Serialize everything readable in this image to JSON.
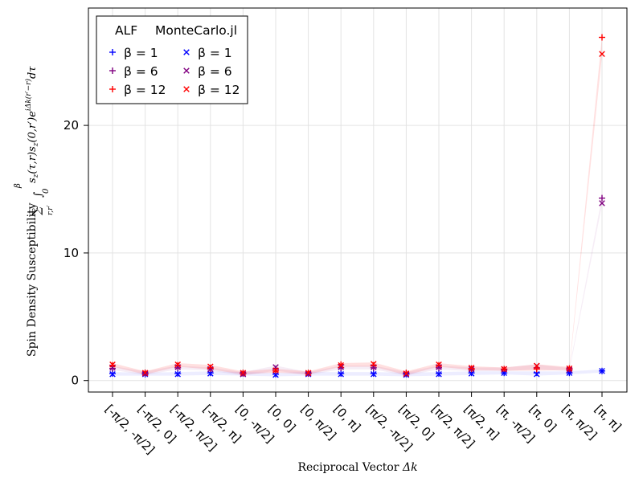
{
  "chart_data": {
    "type": "scatter",
    "xlabel_text": "Reciprocal Vector ",
    "xlabel_symbol": "Δk",
    "ylabel_text": "Spin Density Susceptibility ",
    "ylabel_sum": "∑",
    "ylabel_sum_sub": "r,r′",
    "ylabel_integral": "∫",
    "ylabel_int_upper": "β",
    "ylabel_int_lower": "0",
    "ylabel_integrand": "s",
    "ylabel_integrand_a": "z",
    "ylabel_integrand_b": "(τ,r)s",
    "ylabel_integrand_c": "z",
    "ylabel_integrand_d": "(0,r′)e",
    "ylabel_integrand_exp": "iΔk(r′−r)",
    "ylabel_integrand_end": "dτ",
    "categories": [
      "[-π/2, -π/2]",
      "[-π/2, 0]",
      "[-π/2, π/2]",
      "[-π/2, π]",
      "[0, -π/2]",
      "[0, 0]",
      "[0, π/2]",
      "[0, π]",
      "[π/2, -π/2]",
      "[π/2, 0]",
      "[π/2, π/2]",
      "[π/2, π]",
      "[π, -π/2]",
      "[π, 0]",
      "[π, π/2]",
      "[π, π]"
    ],
    "yticks": [
      0,
      10,
      20
    ],
    "ylim": [
      -0.9,
      29.2
    ],
    "legend": {
      "position": "top-left",
      "group_titles": [
        "ALF",
        "MonteCarlo.jl"
      ]
    },
    "series": [
      {
        "name": "β = 1",
        "group": "ALF",
        "marker": "+",
        "color": "#0000ff",
        "values": [
          0.55,
          0.5,
          0.55,
          0.6,
          0.55,
          0.5,
          0.55,
          0.55,
          0.55,
          0.5,
          0.55,
          0.6,
          0.6,
          0.6,
          0.6,
          0.75
        ]
      },
      {
        "name": "β = 6",
        "group": "ALF",
        "marker": "+",
        "color": "#800080",
        "values": [
          0.95,
          0.6,
          1.0,
          0.9,
          0.55,
          0.9,
          0.55,
          1.0,
          1.0,
          0.55,
          1.0,
          0.85,
          0.85,
          1.0,
          0.85,
          14.3
        ]
      },
      {
        "name": "β = 12",
        "group": "ALF",
        "marker": "+",
        "color": "#ff0000",
        "values": [
          1.2,
          0.6,
          1.2,
          1.0,
          0.6,
          0.75,
          0.6,
          1.25,
          1.2,
          0.6,
          1.2,
          0.95,
          0.9,
          0.9,
          0.95,
          26.9
        ]
      },
      {
        "name": "β = 1",
        "group": "MonteCarlo.jl",
        "marker": "x",
        "color": "#0000ff",
        "values": [
          0.5,
          0.5,
          0.5,
          0.55,
          0.5,
          0.45,
          0.5,
          0.5,
          0.5,
          0.45,
          0.5,
          0.55,
          0.6,
          0.5,
          0.6,
          0.75
        ]
      },
      {
        "name": "β = 6",
        "group": "MonteCarlo.jl",
        "marker": "x",
        "color": "#800080",
        "values": [
          1.0,
          0.55,
          1.05,
          0.9,
          0.5,
          1.05,
          0.55,
          1.05,
          1.05,
          0.5,
          1.05,
          0.9,
          0.9,
          1.15,
          0.85,
          13.9
        ]
      },
      {
        "name": "β = 12",
        "group": "MonteCarlo.jl",
        "marker": "x",
        "color": "#ff0000",
        "values": [
          1.25,
          0.6,
          1.25,
          1.1,
          0.6,
          0.8,
          0.6,
          1.2,
          1.3,
          0.55,
          1.25,
          1.0,
          0.9,
          1.15,
          0.95,
          25.6
        ]
      }
    ],
    "grid": true
  }
}
